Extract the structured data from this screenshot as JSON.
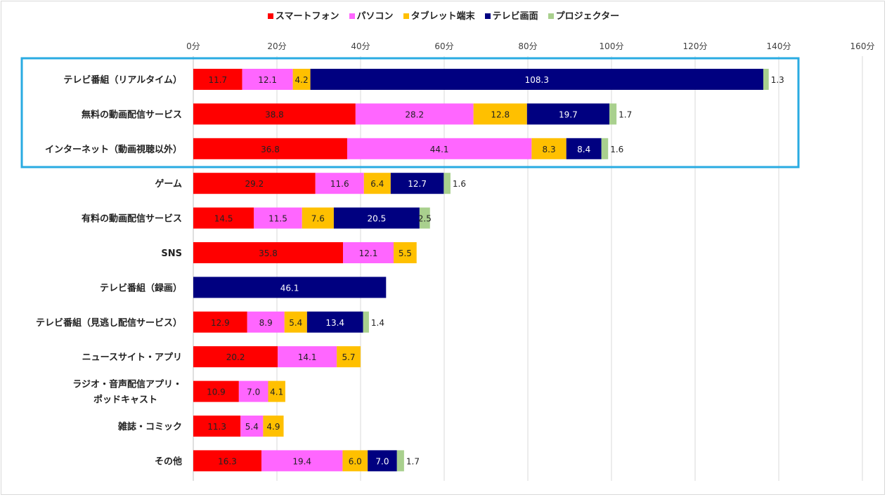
{
  "legend_note": "",
  "chart_data": {
    "type": "bar",
    "orientation": "horizontal",
    "stacked": true,
    "title": "",
    "xlabel": "",
    "ylabel": "",
    "xlim": [
      0,
      160
    ],
    "x_ticks": [
      "0分",
      "20分",
      "40分",
      "60分",
      "80分",
      "100分",
      "120分",
      "140分",
      "160分"
    ],
    "x_axis_position": "top",
    "grid": true,
    "legend_position": "top",
    "highlight": {
      "categories": [
        "テレビ番組（リアルタイム）",
        "無料の動画配信サービス",
        "インターネット（動画視聴以外）"
      ],
      "color": "#29abe2"
    },
    "categories": [
      "テレビ番組（リアルタイム）",
      "無料の動画配信サービス",
      "インターネット（動画視聴以外）",
      "ゲーム",
      "有料の動画配信サービス",
      "SNS",
      "テレビ番組（録画）",
      "テレビ番組（見逃し配信サービス）",
      "ニュースサイト・アプリ",
      "ラジオ・音声配信アプリ・ポッドキャスト",
      "雑誌・コミック",
      "その他"
    ],
    "category_lines": [
      [
        "テレビ番組（リアルタイム）"
      ],
      [
        "無料の動画配信サービス"
      ],
      [
        "インターネット（動画視聴以外）"
      ],
      [
        "ゲーム"
      ],
      [
        "有料の動画配信サービス"
      ],
      [
        "SNS"
      ],
      [
        "テレビ番組（録画）"
      ],
      [
        "テレビ番組（見逃し配信サービス）"
      ],
      [
        "ニュースサイト・アプリ"
      ],
      [
        "ラジオ・音声配信アプリ・",
        "ポッドキャスト"
      ],
      [
        "雑誌・コミック"
      ],
      [
        "その他"
      ]
    ],
    "series": [
      {
        "name": "スマートフォン",
        "color": "#ff0000",
        "label_color": "#222222",
        "values": [
          11.7,
          38.8,
          36.8,
          29.2,
          14.5,
          35.8,
          null,
          12.9,
          20.2,
          10.9,
          11.3,
          16.3
        ]
      },
      {
        "name": "パソコン",
        "color": "#ff66ff",
        "label_color": "#222222",
        "values": [
          12.1,
          28.2,
          44.1,
          11.6,
          11.5,
          12.1,
          null,
          8.9,
          14.1,
          7.0,
          5.4,
          19.4
        ]
      },
      {
        "name": "タブレット端末",
        "color": "#ffc000",
        "label_color": "#222222",
        "values": [
          4.2,
          12.8,
          8.3,
          6.4,
          7.6,
          5.5,
          null,
          5.4,
          5.7,
          4.1,
          4.9,
          6.0
        ]
      },
      {
        "name": "テレビ画面",
        "color": "#000080",
        "label_color": "#ffffff",
        "values": [
          108.3,
          19.7,
          8.4,
          12.7,
          20.5,
          null,
          46.1,
          13.4,
          null,
          null,
          null,
          7.0
        ]
      },
      {
        "name": "プロジェクター",
        "color": "#a9d08e",
        "label_color": "#222222",
        "values": [
          1.3,
          1.7,
          1.6,
          1.6,
          2.5,
          null,
          null,
          1.4,
          null,
          null,
          null,
          1.7
        ]
      }
    ]
  }
}
